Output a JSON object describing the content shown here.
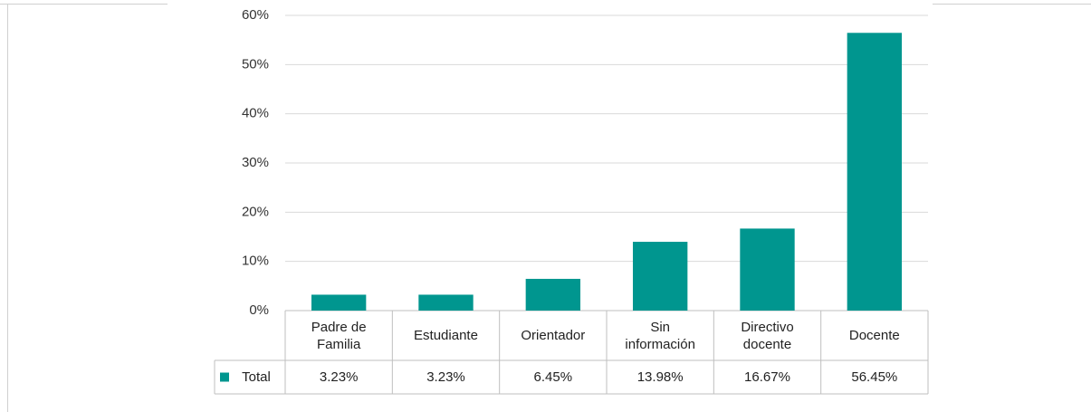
{
  "chart_data": {
    "type": "bar",
    "categories": [
      "Padre de Familia",
      "Estudiante",
      "Orientador",
      "Sin información",
      "Directivo docente",
      "Docente"
    ],
    "series": [
      {
        "name": "Total",
        "color": "#00968f",
        "values": [
          3.23,
          3.23,
          6.45,
          13.98,
          16.67,
          56.45
        ],
        "value_labels": [
          "3.23%",
          "3.23%",
          "6.45%",
          "13.98%",
          "16.67%",
          "56.45%"
        ]
      }
    ],
    "ylim": [
      0,
      60
    ],
    "yticks": [
      {
        "value": 0,
        "label": "0%"
      },
      {
        "value": 10,
        "label": "10%"
      },
      {
        "value": 20,
        "label": "20%"
      },
      {
        "value": 30,
        "label": "30%"
      },
      {
        "value": 40,
        "label": "40%"
      },
      {
        "value": 50,
        "label": "50%"
      },
      {
        "value": 60,
        "label": "60%"
      }
    ],
    "grid": true
  }
}
